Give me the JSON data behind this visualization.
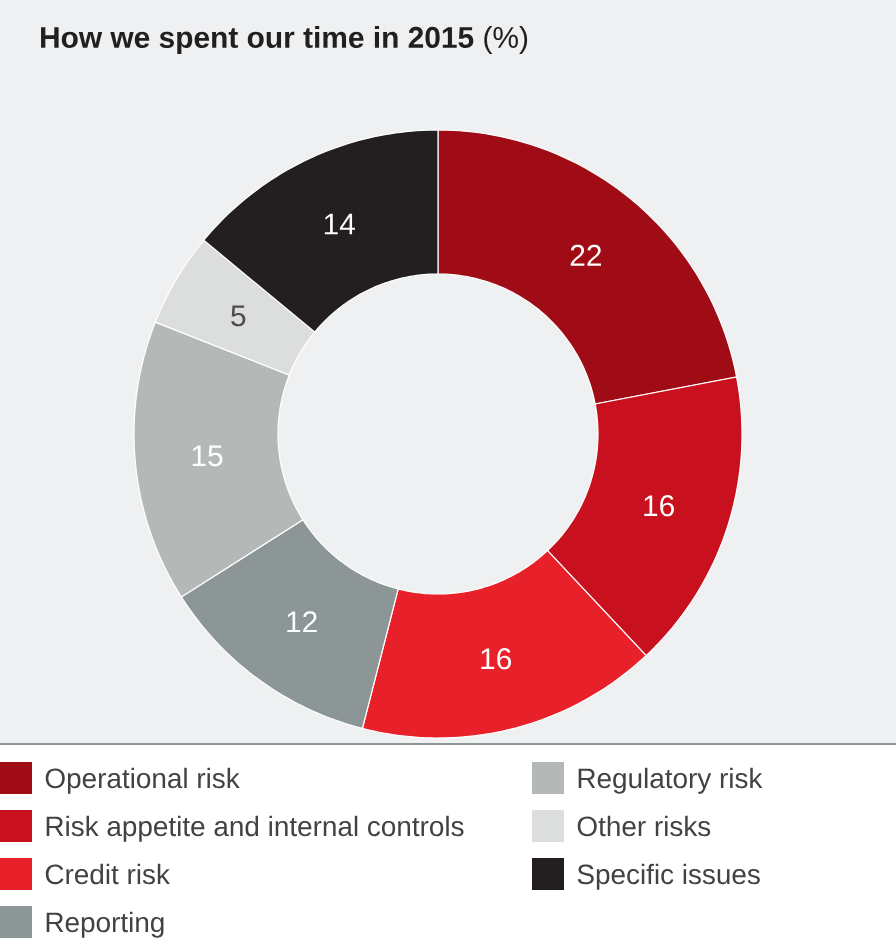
{
  "chart_data": {
    "type": "donut",
    "title": "**How we spent our time in 2015** (%)",
    "categories": [
      "Operational risk",
      "Risk appetite and internal controls",
      "Credit risk",
      "Reporting",
      "Regulatory risk",
      "Other risks",
      "Specific issues"
    ],
    "values": [
      22,
      16,
      16,
      12,
      15,
      5,
      14
    ],
    "colors": [
      "#a00c16",
      "#c8101e",
      "#e8202a",
      "#8c9696",
      "#b4b9b8",
      "#dcdedd",
      "#231f20"
    ],
    "data_labels": true,
    "legend": "bottom"
  }
}
